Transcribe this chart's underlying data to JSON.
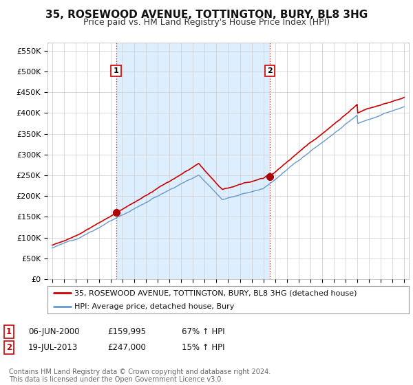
{
  "title": "35, ROSEWOOD AVENUE, TOTTINGTON, BURY, BL8 3HG",
  "subtitle": "Price paid vs. HM Land Registry's House Price Index (HPI)",
  "ylim": [
    0,
    570000
  ],
  "yticks": [
    0,
    50000,
    100000,
    150000,
    200000,
    250000,
    300000,
    350000,
    400000,
    450000,
    500000,
    550000
  ],
  "ytick_labels": [
    "£0",
    "£50K",
    "£100K",
    "£150K",
    "£200K",
    "£250K",
    "£300K",
    "£350K",
    "£400K",
    "£450K",
    "£500K",
    "£550K"
  ],
  "sale1_date": 2000.44,
  "sale1_price": 159995,
  "sale1_label": "1",
  "sale2_date": 2013.55,
  "sale2_price": 247000,
  "sale2_label": "2",
  "line_color_house": "#cc0000",
  "line_color_hpi": "#6699cc",
  "vline_color": "#cc0000",
  "grid_color": "#cccccc",
  "shade_color": "#ddeeff",
  "background_color": "#ffffff",
  "legend_label_house": "35, ROSEWOOD AVENUE, TOTTINGTON, BURY, BL8 3HG (detached house)",
  "legend_label_hpi": "HPI: Average price, detached house, Bury",
  "table_row1": [
    "1",
    "06-JUN-2000",
    "£159,995",
    "67% ↑ HPI"
  ],
  "table_row2": [
    "2",
    "19-JUL-2013",
    "£247,000",
    "15% ↑ HPI"
  ],
  "footnote": "Contains HM Land Registry data © Crown copyright and database right 2024.\nThis data is licensed under the Open Government Licence v3.0.",
  "title_fontsize": 11,
  "subtitle_fontsize": 9,
  "tick_fontsize": 8
}
